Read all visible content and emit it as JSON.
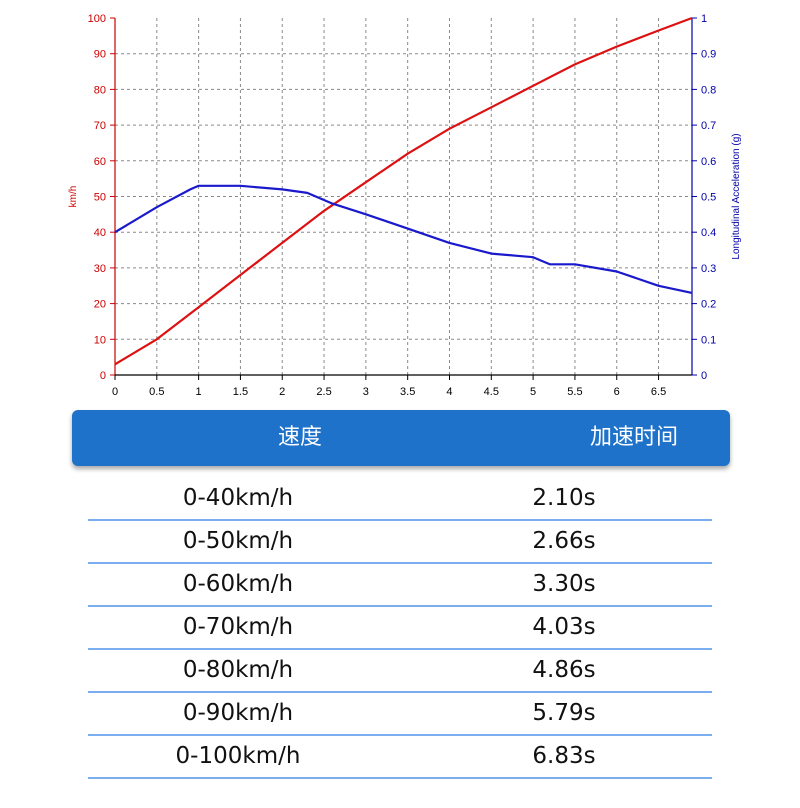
{
  "chart_data": {
    "type": "line",
    "x_ticks": [
      "0",
      "0.5",
      "1",
      "1.5",
      "2",
      "2.5",
      "3",
      "3.5",
      "4",
      "4.5",
      "5",
      "5.5",
      "6",
      "6.5"
    ],
    "xlim": [
      0,
      6.9
    ],
    "y_left": {
      "label": "km/h",
      "ticks": [
        "0",
        "10",
        "20",
        "30",
        "40",
        "50",
        "60",
        "70",
        "80",
        "90",
        "100"
      ],
      "range": [
        0,
        100
      ],
      "color": "#cc0000"
    },
    "y_right": {
      "label": "Longitudinal Acceleration (g)",
      "ticks": [
        "0",
        "0.1",
        "0.2",
        "0.3",
        "0.4",
        "0.5",
        "0.6",
        "0.7",
        "0.8",
        "0.9",
        "1"
      ],
      "range": [
        0,
        1
      ],
      "color": "#0000aa"
    },
    "grid": true,
    "series": [
      {
        "axis": "left",
        "color": "#dd1111",
        "x": [
          0,
          0.5,
          1,
          1.5,
          2,
          2.5,
          3,
          3.5,
          4,
          4.5,
          5,
          5.5,
          6,
          6.5,
          6.9
        ],
        "y": [
          3,
          10,
          19,
          28,
          37,
          46,
          54,
          62,
          69,
          75,
          81,
          87,
          92,
          96.5,
          100
        ]
      },
      {
        "axis": "right",
        "color": "#1a1acc",
        "x": [
          0,
          0.5,
          0.9,
          1,
          1.5,
          2,
          2.3,
          2.6,
          3,
          3.5,
          4,
          4.5,
          5,
          5.2,
          5.5,
          6,
          6.5,
          6.9
        ],
        "y": [
          0.4,
          0.47,
          0.52,
          0.53,
          0.53,
          0.52,
          0.51,
          0.48,
          0.45,
          0.41,
          0.37,
          0.34,
          0.33,
          0.31,
          0.31,
          0.29,
          0.25,
          0.23
        ]
      }
    ]
  },
  "table": {
    "headers": [
      "速度",
      "加速时间"
    ],
    "rows": [
      {
        "speed": "0-40km/h",
        "time": "2.10s"
      },
      {
        "speed": "0-50km/h",
        "time": "2.66s"
      },
      {
        "speed": "0-60km/h",
        "time": "3.30s"
      },
      {
        "speed": "0-70km/h",
        "time": "4.03s"
      },
      {
        "speed": "0-80km/h",
        "time": "4.86s"
      },
      {
        "speed": "0-90km/h",
        "time": "5.79s"
      },
      {
        "speed": "0-100km/h",
        "time": "6.83s"
      }
    ]
  }
}
